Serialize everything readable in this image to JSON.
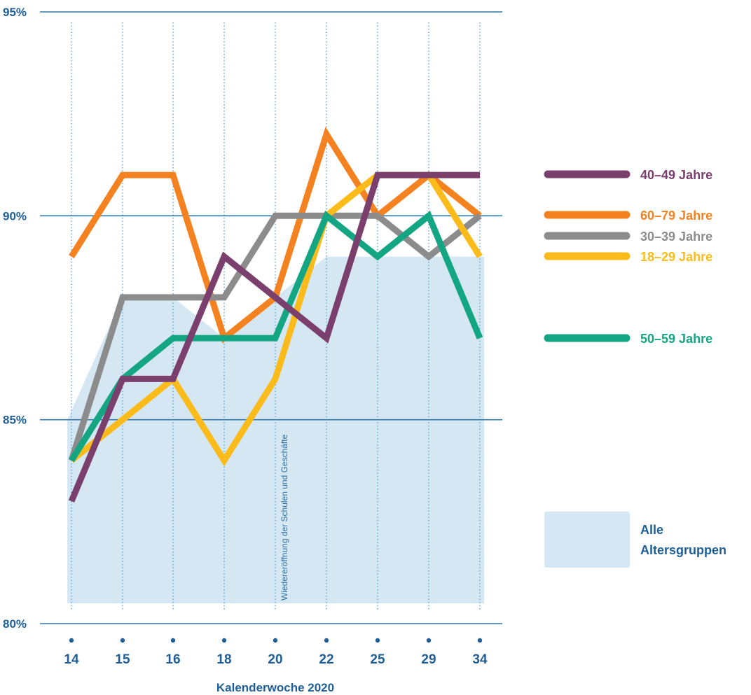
{
  "chart_data": {
    "type": "line",
    "x": [
      "14",
      "15",
      "16",
      "18",
      "20",
      "22",
      "25",
      "29",
      "34"
    ],
    "xlabel": "Kalenderwoche 2020",
    "ylabel": "",
    "ylim": [
      80,
      95
    ],
    "yticks": [
      {
        "value": 80,
        "label": "80%"
      },
      {
        "value": 85,
        "label": "85%"
      },
      {
        "value": 90,
        "label": "90%"
      },
      {
        "value": 95,
        "label": "95%"
      }
    ],
    "grid": "horizontal solid at ticks, vertical dotted at each week",
    "legend_position": "right",
    "area": {
      "name": "Alle Altersgruppen",
      "label_lines": [
        "Alle",
        "Altersgruppen"
      ],
      "color": "#d5e7f3",
      "values": [
        85,
        88,
        88,
        87,
        88,
        89,
        89,
        89,
        89
      ]
    },
    "series": [
      {
        "name": "60–79 Jahre",
        "color": "#f58220",
        "values": [
          89,
          91,
          91,
          87,
          88,
          92,
          90,
          91,
          90
        ]
      },
      {
        "name": "30–39 Jahre",
        "color": "#8c8c8c",
        "values": [
          84,
          88,
          88,
          88,
          90,
          90,
          90,
          89,
          90
        ]
      },
      {
        "name": "18–29 Jahre",
        "color": "#fbbb1b",
        "values": [
          84,
          85,
          86,
          84,
          86,
          90,
          91,
          91,
          89
        ]
      },
      {
        "name": "50–59 Jahre",
        "color": "#14a582",
        "values": [
          84,
          86,
          87,
          87,
          87,
          90,
          89,
          90,
          87
        ]
      },
      {
        "name": "40–49 Jahre",
        "color": "#7b3f6e",
        "values": [
          83,
          86,
          86,
          89,
          88,
          87,
          91,
          91,
          91
        ]
      }
    ],
    "legend_order": [
      "40–49 Jahre",
      "60–79 Jahre",
      "30–39 Jahre",
      "18–29 Jahre",
      "50–59 Jahre"
    ],
    "annotation": {
      "text": "Wiedereröffnung der Schulen und Geschäfte",
      "x": "20"
    }
  }
}
